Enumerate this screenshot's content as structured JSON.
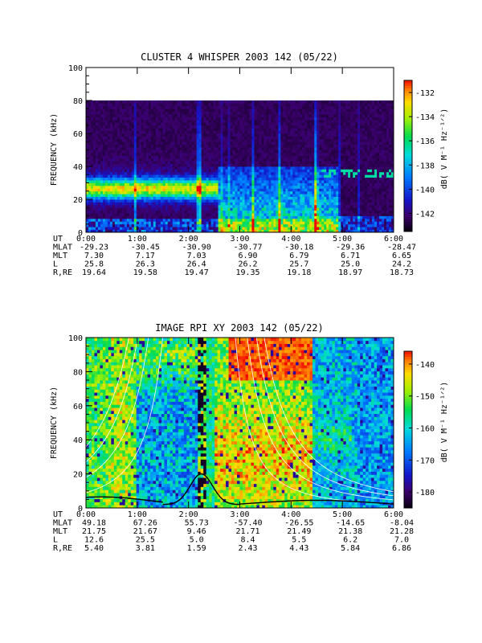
{
  "chart_data": [
    {
      "type": "heatmap",
      "title": "CLUSTER 4 WHISPER 2003 142 (05/22)",
      "ylabel": "FREQUENCY (kHz)",
      "ylim": [
        0,
        100
      ],
      "yticks": [
        "0",
        "20",
        "40",
        "60",
        "80",
        "100"
      ],
      "xlim_hours": [
        0,
        6
      ],
      "data_top_khz": 80,
      "colorbar": {
        "label": "dB( V M⁻¹ Hz⁻¹ᐟ²)",
        "range": [
          -143.5,
          -131
        ],
        "ticks": [
          "-132",
          "-134",
          "-136",
          "-138",
          "-140",
          "-142"
        ],
        "tick_values": [
          -132,
          -134,
          -136,
          -138,
          -140,
          -142
        ]
      },
      "features": {
        "emission_band_khz": [
          20,
          33
        ],
        "emission_band_end_hours": 2.6,
        "intense_bursts_hours": [
          2.6,
          4.9
        ],
        "weak_lines_khz": [
          38,
          45,
          50
        ]
      },
      "ephemeris": {
        "row_labels": [
          "UT",
          "MLAT",
          "MLT",
          "L",
          "R,RE"
        ],
        "columns": [
          [
            "0:00",
            "-29.23",
            "7.30",
            "25.8",
            "19.64"
          ],
          [
            "1:00",
            "-30.45",
            "7.17",
            "26.3",
            "19.58"
          ],
          [
            "2:00",
            "-30.90",
            "7.03",
            "26.4",
            "19.47"
          ],
          [
            "3:00",
            "-30.77",
            "6.90",
            "26.2",
            "19.35"
          ],
          [
            "4:00",
            "-30.18",
            "6.79",
            "25.7",
            "19.18"
          ],
          [
            "5:00",
            "-29.36",
            "6.71",
            "25.0",
            "18.97"
          ],
          [
            "6:00",
            "-28.47",
            "6.65",
            "24.2",
            "18.73"
          ]
        ]
      }
    },
    {
      "type": "heatmap",
      "title": "IMAGE RPI XY 2003 142 (05/22)",
      "ylabel": "FREQUENCY (kHz)",
      "ylim": [
        0,
        100
      ],
      "yticks": [
        "0",
        "20",
        "40",
        "60",
        "80",
        "100"
      ],
      "xlim_hours": [
        0,
        6
      ],
      "colorbar": {
        "label": "dB( V M⁻¹ Hz⁻¹ᐟ²)",
        "range": [
          -185,
          -136
        ],
        "ticks": [
          "-140",
          "-150",
          "-160",
          "-170",
          "-180"
        ],
        "tick_values": [
          -140,
          -150,
          -160,
          -170,
          -180
        ]
      },
      "features": {
        "saturated_gap_hours": [
          2.2,
          2.35
        ],
        "strong_emission_hours": [
          2.5,
          4.4
        ]
      },
      "ephemeris": {
        "row_labels": [
          "UT",
          "MLAT",
          "MLT",
          "L",
          "R,RE"
        ],
        "columns": [
          [
            "0:00",
            "49.18",
            "21.75",
            "12.6",
            "5.40"
          ],
          [
            "1:00",
            "67.26",
            "21.67",
            "25.5",
            "3.81"
          ],
          [
            "2:00",
            "55.73",
            "9.46",
            "5.0",
            "1.59"
          ],
          [
            "3:00",
            "-57.40",
            "21.71",
            "8.4",
            "2.43"
          ],
          [
            "4:00",
            "-26.55",
            "21.49",
            "5.5",
            "4.43"
          ],
          [
            "5:00",
            "-14.65",
            "21.38",
            "6.2",
            "5.84"
          ],
          [
            "6:00",
            "-8.04",
            "21.28",
            "7.0",
            "6.86"
          ]
        ]
      }
    }
  ]
}
